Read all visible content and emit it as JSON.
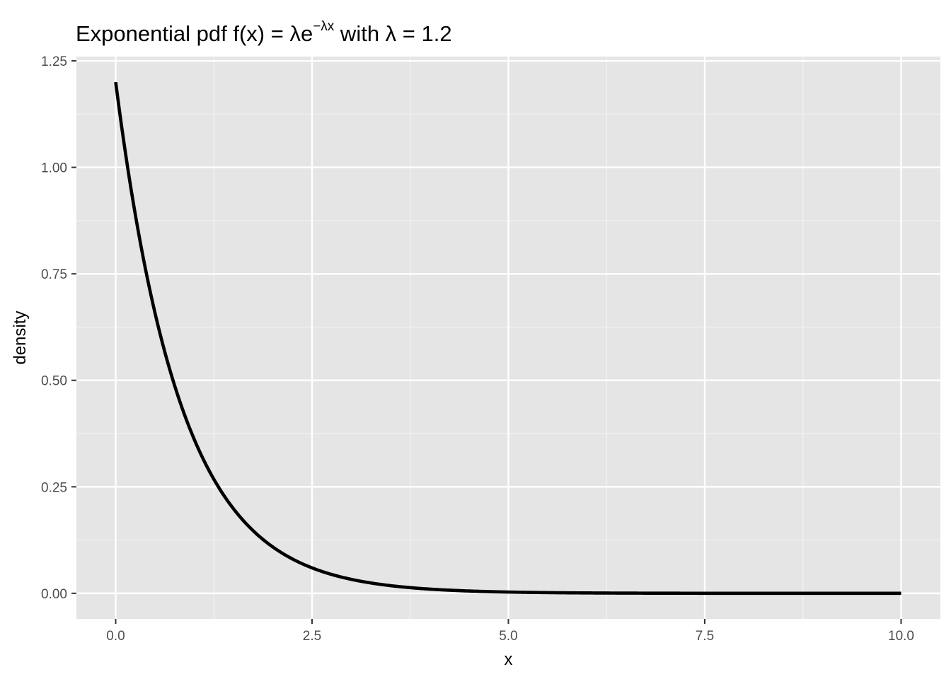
{
  "chart_data": {
    "type": "line",
    "title": {
      "prefix": "Exponential pdf f",
      "open_paren": "(",
      "arg": "x",
      "close_paren": ")",
      "eq": " = ",
      "lambda": "λ",
      "e": "e",
      "exponent": "−λx",
      "with": " with ",
      "lambda2": "λ",
      "value": " = 1.2"
    },
    "xlabel": "x",
    "ylabel": "density",
    "xlim": [
      -0.5,
      10.5
    ],
    "ylim": [
      -0.06,
      1.26
    ],
    "x_ticks": [
      0,
      2.5,
      5,
      7.5,
      10
    ],
    "x_tick_labels": [
      "0.0",
      "2.5",
      "5.0",
      "7.5",
      "10.0"
    ],
    "y_ticks": [
      0,
      0.25,
      0.5,
      0.75,
      1.0,
      1.25
    ],
    "y_tick_labels": [
      "0.00",
      "0.25",
      "0.50",
      "0.75",
      "1.00",
      "1.25"
    ],
    "grid": true,
    "rate": 1.2,
    "series": [
      {
        "color": "#000000",
        "x": [
          0,
          0.25,
          0.5,
          0.75,
          1.0,
          1.25,
          1.5,
          1.75,
          2.0,
          2.5,
          3.0,
          3.5,
          4.0,
          4.5,
          5.0,
          6.0,
          7.0,
          8.0,
          9.0,
          10.0
        ],
        "y": [
          1.2,
          0.889,
          0.659,
          0.488,
          0.361,
          0.268,
          0.198,
          0.147,
          0.109,
          0.06,
          0.033,
          0.018,
          0.01,
          0.005,
          0.003,
          0.001,
          0.0,
          0.0,
          0.0,
          0.0
        ]
      }
    ]
  },
  "colors": {
    "panel_bg": "#e5e5e5",
    "grid_major": "#ffffff",
    "grid_minor": "#f2f2f2",
    "line": "#000000",
    "tick_text": "#4d4d4d"
  }
}
